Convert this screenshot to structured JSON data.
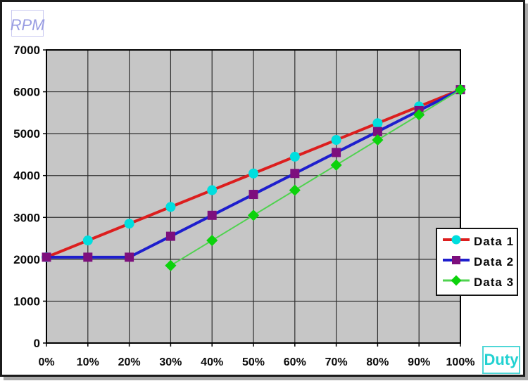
{
  "window": {
    "frame_border_color": "#1b1b1b",
    "shadow_color": "#a9a9a9",
    "background": "#ffffff"
  },
  "ylabel_box": {
    "text": "RPM",
    "text_color": "#989ce2",
    "border_color": "#c9c9f1"
  },
  "xlabel_box": {
    "text": "Duty",
    "text_color": "#21d1d1",
    "border_color": "#4ed7d7"
  },
  "chart_data": {
    "type": "line",
    "title": "",
    "xlabel": "Duty",
    "ylabel": "RPM",
    "x_categories": [
      "0%",
      "10%",
      "20%",
      "30%",
      "40%",
      "50%",
      "60%",
      "70%",
      "80%",
      "90%",
      "100%"
    ],
    "x_values": [
      0,
      10,
      20,
      30,
      40,
      50,
      60,
      70,
      80,
      90,
      100
    ],
    "y_ticks": [
      0,
      1000,
      2000,
      3000,
      4000,
      5000,
      6000,
      7000
    ],
    "ylim": [
      0,
      7000
    ],
    "grid": true,
    "plot_bg": "#c6c6c6",
    "grid_color": "#2e2e2e",
    "axis_color": "#000000",
    "tick_label_color": "#0a0a0a",
    "legend_position": "right-inside",
    "series": [
      {
        "name": "Data 1",
        "line_color": "#dc1e1e",
        "line_width": 4,
        "marker": "circle",
        "marker_color": "#00dede",
        "values": [
          2050,
          2450,
          2850,
          3250,
          3650,
          4050,
          4450,
          4850,
          5250,
          5650,
          6050
        ]
      },
      {
        "name": "Data 2",
        "line_color": "#1e1ecd",
        "line_width": 4,
        "marker": "square",
        "marker_color": "#7d0f7d",
        "values": [
          2050,
          2050,
          2050,
          2550,
          3050,
          3550,
          4050,
          4550,
          5050,
          5550,
          6050
        ]
      },
      {
        "name": "Data 3",
        "line_color": "#4fd24f",
        "line_width": 2,
        "marker": "diamond",
        "marker_color": "#0cd20c",
        "values": [
          null,
          null,
          null,
          1850,
          2450,
          3050,
          3650,
          4250,
          4850,
          5450,
          6050
        ]
      }
    ]
  }
}
